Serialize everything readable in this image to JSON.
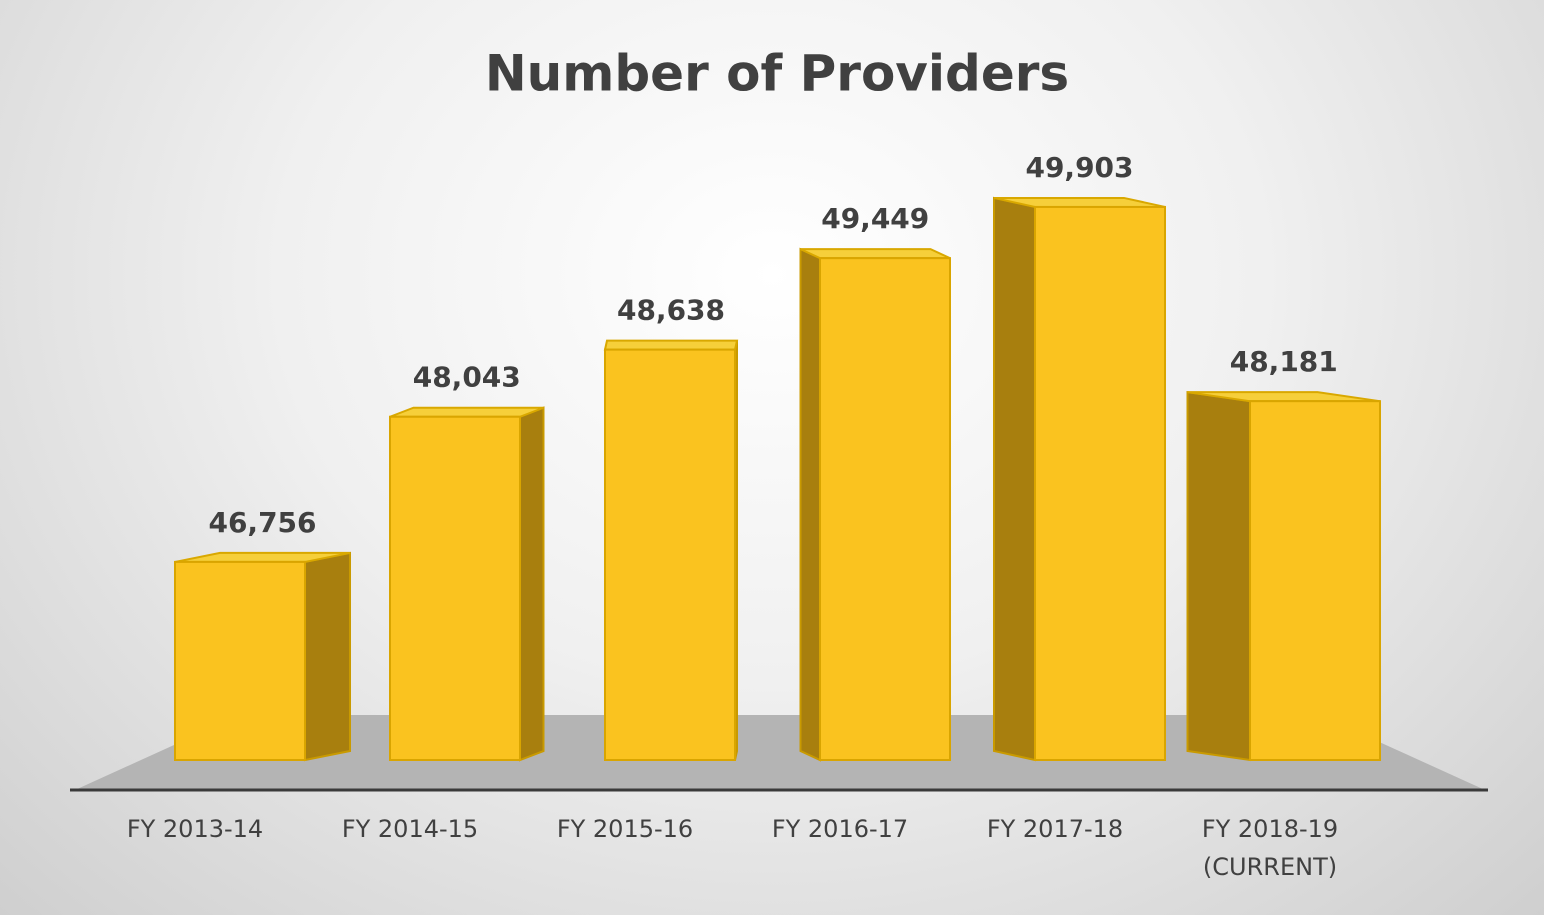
{
  "chart_data": {
    "type": "bar3d",
    "title": "Number of Providers",
    "categories": [
      "FY 2013-14",
      "FY 2014-15",
      "FY 2015-16",
      "FY 2016-17",
      "FY 2017-18",
      "FY 2018-19\n(CURRENT)"
    ],
    "values": [
      46756,
      48043,
      48638,
      49449,
      49903,
      48181
    ],
    "value_labels": [
      "46,756",
      "48,043",
      "48,638",
      "49,449",
      "49,903",
      "48,181"
    ],
    "color": "#fac31f",
    "ylim": [
      45000,
      50000
    ]
  }
}
